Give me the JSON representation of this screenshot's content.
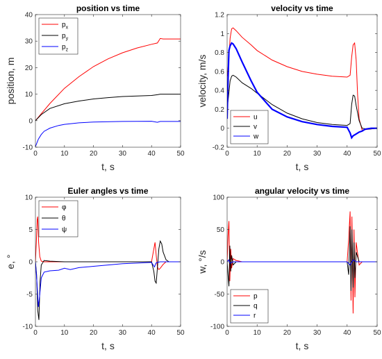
{
  "chart_data": [
    {
      "type": "line",
      "title": "position vs time",
      "xlabel": "t, s",
      "ylabel": "position, m",
      "xlim": [
        0,
        50
      ],
      "ylim": [
        -10,
        40
      ],
      "xticks": [
        0,
        10,
        20,
        30,
        40,
        50
      ],
      "yticks": [
        -10,
        0,
        10,
        20,
        30,
        40
      ],
      "legend_position": "top-left",
      "series": [
        {
          "name": "p",
          "sub": "x",
          "color": "#ff0000",
          "x": [
            0,
            5,
            10,
            15,
            20,
            25,
            30,
            35,
            40,
            42,
            43,
            44,
            46,
            50
          ],
          "y": [
            0,
            6.5,
            12.2,
            16.6,
            20.4,
            23.3,
            25.6,
            27.4,
            28.8,
            29.3,
            31.0,
            30.8,
            30.8,
            30.8
          ]
        },
        {
          "name": "p",
          "sub": "y",
          "color": "#000000",
          "x": [
            0,
            2,
            5,
            10,
            15,
            20,
            25,
            30,
            35,
            40,
            42,
            43,
            44,
            50
          ],
          "y": [
            0,
            2.3,
            4.6,
            6.4,
            7.4,
            8.2,
            8.7,
            9.1,
            9.3,
            9.5,
            9.8,
            10.0,
            10.0,
            10.0
          ]
        },
        {
          "name": "p",
          "sub": "z",
          "color": "#0000ff",
          "x": [
            0,
            1,
            2,
            3,
            5,
            8,
            10,
            15,
            20,
            30,
            40,
            42,
            43,
            45,
            50
          ],
          "y": [
            -9.8,
            -7.0,
            -5.2,
            -4.0,
            -2.8,
            -1.8,
            -1.4,
            -0.8,
            -0.5,
            -0.3,
            -0.2,
            -0.6,
            -0.3,
            -0.3,
            -0.3
          ]
        }
      ]
    },
    {
      "type": "line",
      "title": "velocity vs time",
      "xlabel": "t, s",
      "ylabel": "velocity, m/s",
      "xlim": [
        0,
        50
      ],
      "ylim": [
        -0.2,
        1.2
      ],
      "xticks": [
        0,
        10,
        20,
        30,
        40,
        50
      ],
      "yticks": [
        -0.2,
        0,
        0.2,
        0.4,
        0.6,
        0.8,
        1,
        1.2
      ],
      "ytick_labels": [
        "-0.2",
        "0",
        "0.2",
        "0.4",
        "0.6",
        "0.8",
        "1",
        "1.2"
      ],
      "legend_position": "bottom-left",
      "series": [
        {
          "name": "u",
          "color": "#ff0000",
          "x": [
            0,
            0.5,
            1,
            1.5,
            2,
            3,
            5,
            8,
            10,
            15,
            20,
            25,
            30,
            35,
            40,
            41,
            41.5,
            42,
            42.5,
            43,
            43.5,
            44,
            45,
            47,
            50
          ],
          "y": [
            0.55,
            0.7,
            0.95,
            1.05,
            1.06,
            1.03,
            0.96,
            0.88,
            0.82,
            0.72,
            0.65,
            0.6,
            0.57,
            0.55,
            0.54,
            0.56,
            0.75,
            0.88,
            0.9,
            0.72,
            0.35,
            0.1,
            -0.02,
            -0.01,
            0
          ]
        },
        {
          "name": "v",
          "color": "#000000",
          "x": [
            0,
            0.5,
            1,
            1.5,
            2,
            3,
            5,
            8,
            10,
            15,
            20,
            25,
            30,
            35,
            40,
            41,
            41.5,
            42,
            42.5,
            43,
            44,
            45,
            47,
            50
          ],
          "y": [
            0.2,
            0.35,
            0.5,
            0.55,
            0.56,
            0.54,
            0.48,
            0.42,
            0.37,
            0.25,
            0.16,
            0.1,
            0.06,
            0.04,
            0.03,
            0.05,
            0.25,
            0.35,
            0.34,
            0.24,
            0.08,
            0.0,
            -0.01,
            0
          ]
        },
        {
          "name": "w",
          "color": "#0000ff",
          "x": [
            0,
            0.3,
            0.6,
            1,
            1.5,
            2,
            3,
            5,
            8,
            10,
            15,
            20,
            25,
            30,
            35,
            40,
            41,
            41.5,
            42,
            43,
            44,
            45,
            46,
            48,
            50
          ],
          "y": [
            0.1,
            0.5,
            0.82,
            0.87,
            0.9,
            0.89,
            0.84,
            0.7,
            0.5,
            0.38,
            0.2,
            0.12,
            0.07,
            0.04,
            0.02,
            0.01,
            -0.05,
            -0.1,
            -0.08,
            -0.06,
            -0.04,
            -0.03,
            -0.01,
            0,
            0
          ]
        }
      ]
    },
    {
      "type": "line",
      "title": "Euler angles vs time",
      "xlabel": "t, s",
      "ylabel": "e, °",
      "xlim": [
        0,
        50
      ],
      "ylim": [
        -10,
        10
      ],
      "xticks": [
        0,
        10,
        20,
        30,
        40,
        50
      ],
      "yticks": [
        -10,
        -5,
        0,
        5,
        10
      ],
      "legend_position": "top-left",
      "series": [
        {
          "name": "φ",
          "color": "#ff0000",
          "x": [
            0,
            0.3,
            0.6,
            0.8,
            1.1,
            1.5,
            2,
            3,
            4,
            6,
            10,
            20,
            30,
            40,
            40.8,
            41.2,
            41.6,
            42,
            42.5,
            43,
            44,
            45,
            47,
            50
          ],
          "y": [
            0,
            3,
            6.5,
            7.0,
            3.0,
            0.8,
            0.1,
            0,
            0,
            0,
            0,
            0,
            0,
            0,
            2.0,
            3.0,
            1.0,
            -0.8,
            -1.2,
            -1.0,
            -0.4,
            0,
            0,
            0
          ]
        },
        {
          "name": "θ",
          "color": "#000000",
          "x": [
            0,
            0.4,
            0.8,
            1.2,
            1.6,
            2,
            3,
            5,
            10,
            20,
            30,
            40,
            40.8,
            41.2,
            41.6,
            42,
            42.5,
            43,
            43.5,
            44,
            45,
            46,
            48,
            50
          ],
          "y": [
            0,
            -2,
            -7.5,
            -9.0,
            -3.0,
            -0.5,
            0.2,
            0.1,
            0,
            0,
            0,
            0,
            -1.5,
            -3.0,
            -3.3,
            -1.0,
            2.0,
            3.2,
            2.8,
            1.5,
            0.3,
            0,
            0,
            0
          ]
        },
        {
          "name": "ψ",
          "color": "#0000ff",
          "x": [
            0,
            0.5,
            1,
            1.5,
            2,
            3,
            5,
            8,
            10,
            12,
            15,
            20,
            25,
            30,
            35,
            40,
            41,
            41.5,
            42,
            43,
            45,
            50
          ],
          "y": [
            0,
            -3,
            -7.0,
            -5.0,
            -2.5,
            -1.6,
            -1.4,
            -1.3,
            -1.0,
            -1.2,
            -0.9,
            -0.7,
            -0.5,
            -0.3,
            -0.2,
            -0.1,
            -0.8,
            -0.2,
            -0.1,
            0,
            0,
            0
          ]
        }
      ]
    },
    {
      "type": "line",
      "title": "angular velocity vs time",
      "xlabel": "t, s",
      "ylabel": "w, °/s",
      "xlim": [
        0,
        50
      ],
      "ylim": [
        -100,
        100
      ],
      "xticks": [
        0,
        10,
        20,
        30,
        40,
        50
      ],
      "yticks": [
        -100,
        -50,
        0,
        50,
        100
      ],
      "legend_position": "bottom-left",
      "series": [
        {
          "name": "p",
          "color": "#ff0000",
          "x": [
            0,
            0.3,
            0.6,
            0.9,
            1.2,
            1.5,
            2,
            3,
            5,
            10,
            20,
            30,
            40,
            40.5,
            41,
            41.3,
            41.6,
            42,
            42.3,
            42.6,
            43,
            44,
            45,
            50
          ],
          "y": [
            0,
            40,
            63,
            -30,
            20,
            -10,
            5,
            2,
            0,
            0,
            0,
            0,
            0,
            35,
            78,
            -60,
            70,
            -80,
            50,
            -55,
            30,
            -5,
            0,
            0
          ]
        },
        {
          "name": "q",
          "color": "#000000",
          "x": [
            0,
            0.3,
            0.6,
            0.9,
            1.2,
            1.5,
            2,
            3,
            5,
            10,
            20,
            30,
            40,
            40.5,
            41,
            41.3,
            41.6,
            42,
            42.3,
            42.6,
            43,
            44,
            45,
            50
          ],
          "y": [
            0,
            -20,
            -38,
            25,
            -15,
            10,
            -5,
            0,
            0,
            0,
            0,
            0,
            0,
            -20,
            55,
            -45,
            50,
            -40,
            30,
            -25,
            15,
            0,
            0,
            0
          ]
        },
        {
          "name": "r",
          "color": "#0000ff",
          "x": [
            0,
            0.5,
            1,
            2,
            3,
            5,
            10,
            20,
            30,
            40,
            41,
            42,
            43,
            45,
            50
          ],
          "y": [
            0,
            3,
            -2,
            0,
            0,
            0,
            0,
            0,
            0,
            0,
            -5,
            3,
            0,
            0,
            0
          ]
        }
      ]
    }
  ]
}
